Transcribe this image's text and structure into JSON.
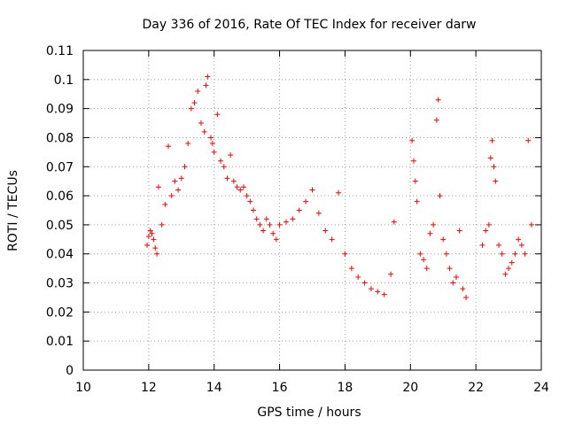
{
  "chart_data": {
    "type": "scatter",
    "title": "Day 336 of 2016, Rate Of TEC Index for receiver darw",
    "xlabel": "GPS time / hours",
    "ylabel": "ROTI / TECUs",
    "xlim": [
      10,
      24
    ],
    "ylim": [
      0,
      0.11
    ],
    "x_ticks": [
      "10",
      "12",
      "14",
      "16",
      "18",
      "20",
      "22",
      "24"
    ],
    "y_ticks": [
      "0",
      "0.01",
      "0.02",
      "0.03",
      "0.04",
      "0.05",
      "0.06",
      "0.07",
      "0.08",
      "0.09",
      "0.1",
      "0.11"
    ],
    "grid": true,
    "legend": "none",
    "marker": "+",
    "color": "#ff0000",
    "series": [
      {
        "x": [
          11.95,
          12.0,
          12.05,
          12.1,
          12.15,
          12.2,
          12.25,
          12.3,
          12.4,
          12.5,
          12.6,
          12.7,
          12.8,
          12.9,
          13.0,
          13.1,
          13.2,
          13.3,
          13.4,
          13.5,
          13.6,
          13.7,
          13.75,
          13.8,
          13.9,
          13.95,
          14.0,
          14.1,
          14.2,
          14.3,
          14.4,
          14.5,
          14.6,
          14.7,
          14.8,
          14.9,
          15.0,
          15.1,
          15.2,
          15.3,
          15.4,
          15.5,
          15.6,
          15.7,
          15.8,
          15.9,
          16.0,
          16.2,
          16.4,
          16.6,
          16.8,
          17.0,
          17.2,
          17.4,
          17.6,
          17.8,
          18.0,
          18.2,
          18.4,
          18.6,
          18.8,
          19.0,
          19.2,
          19.4,
          19.5,
          20.05,
          20.1,
          20.15,
          20.2,
          20.3,
          20.4,
          20.5,
          20.6,
          20.7,
          20.8,
          20.85,
          20.9,
          21.0,
          21.1,
          21.2,
          21.3,
          21.4,
          21.5,
          21.6,
          21.7,
          22.2,
          22.3,
          22.4,
          22.45,
          22.5,
          22.55,
          22.6,
          22.7,
          22.8,
          22.9,
          23.0,
          23.1,
          23.2,
          23.3,
          23.4,
          23.5,
          23.6,
          23.7
        ],
        "y": [
          0.043,
          0.046,
          0.048,
          0.047,
          0.045,
          0.042,
          0.04,
          0.063,
          0.05,
          0.057,
          0.077,
          0.06,
          0.065,
          0.062,
          0.066,
          0.07,
          0.078,
          0.09,
          0.092,
          0.096,
          0.085,
          0.082,
          0.098,
          0.101,
          0.08,
          0.078,
          0.075,
          0.088,
          0.072,
          0.07,
          0.066,
          0.074,
          0.065,
          0.063,
          0.062,
          0.063,
          0.06,
          0.058,
          0.055,
          0.052,
          0.05,
          0.048,
          0.052,
          0.05,
          0.047,
          0.045,
          0.05,
          0.051,
          0.052,
          0.055,
          0.058,
          0.062,
          0.054,
          0.048,
          0.045,
          0.061,
          0.04,
          0.035,
          0.032,
          0.03,
          0.028,
          0.027,
          0.026,
          0.033,
          0.051,
          0.079,
          0.072,
          0.065,
          0.058,
          0.04,
          0.038,
          0.035,
          0.047,
          0.05,
          0.086,
          0.093,
          0.06,
          0.045,
          0.04,
          0.035,
          0.03,
          0.032,
          0.048,
          0.028,
          0.025,
          0.043,
          0.048,
          0.05,
          0.073,
          0.079,
          0.07,
          0.065,
          0.043,
          0.04,
          0.033,
          0.035,
          0.037,
          0.04,
          0.045,
          0.043,
          0.04,
          0.079,
          0.05
        ]
      }
    ]
  }
}
